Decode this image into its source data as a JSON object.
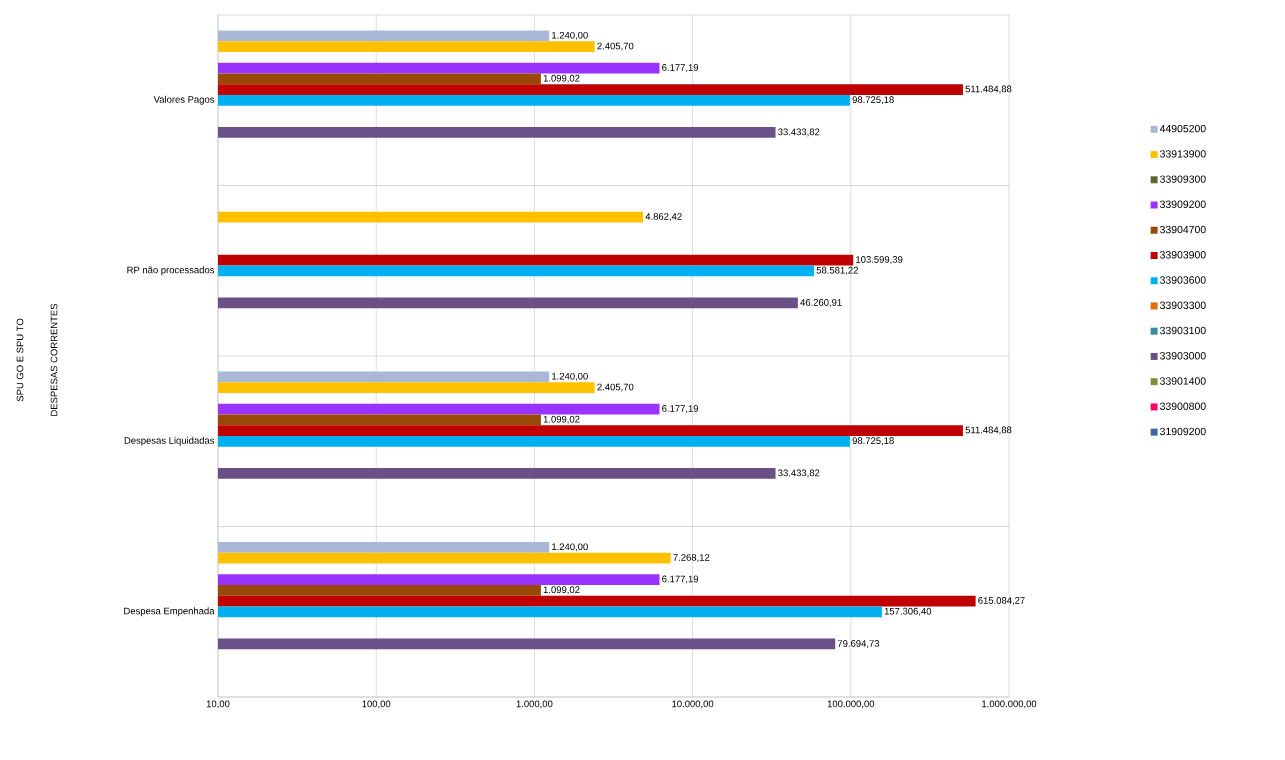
{
  "chart_data": {
    "type": "bar",
    "orientation": "horizontal",
    "log": "x",
    "annotations": [
      "SPU GO  E SPU TO",
      "DESPESAS CORRENTES"
    ],
    "categories": [
      "Valores Pagos",
      "RP não processados",
      "Despesas Liquidadas",
      "Despesa Empenhada"
    ],
    "xlim": [
      10,
      1000000
    ],
    "xticks": [
      {
        "value": 10,
        "label": "10,00"
      },
      {
        "value": 100,
        "label": "100,00"
      },
      {
        "value": 1000,
        "label": "1.000,00"
      },
      {
        "value": 10000,
        "label": "10.000,00"
      },
      {
        "value": 100000,
        "label": "100.000,00"
      },
      {
        "value": 1000000,
        "label": "1.000.000,00"
      }
    ],
    "grid": true,
    "legend": "right",
    "series": [
      {
        "name": "44905200",
        "color": "#a9b8d9",
        "values": [
          1240.0,
          null,
          1240.0,
          1240.0
        ],
        "value_labels": [
          "1.240,00",
          null,
          "1.240,00",
          "1.240,00"
        ]
      },
      {
        "name": "33913900",
        "color": "#ffc000",
        "values": [
          2405.7,
          4862.42,
          2405.7,
          7268.12
        ],
        "value_labels": [
          "2.405,70",
          "4.862,42",
          "2.405,70",
          "7.268,12"
        ]
      },
      {
        "name": "33909300",
        "color": "#5f6530",
        "values": [
          null,
          null,
          null,
          null
        ]
      },
      {
        "name": "33909200",
        "color": "#9933ff",
        "values": [
          6177.19,
          null,
          6177.19,
          6177.19
        ],
        "value_labels": [
          "6.177,19",
          null,
          "6.177,19",
          "6.177,19"
        ]
      },
      {
        "name": "33904700",
        "color": "#984807",
        "values": [
          1099.02,
          null,
          1099.02,
          1099.02
        ],
        "value_labels": [
          "1.099,02",
          null,
          "1.099,02",
          "1.099,02"
        ]
      },
      {
        "name": "33903900",
        "color": "#c00000",
        "values": [
          511484.88,
          103599.39,
          511484.88,
          615084.27
        ],
        "value_labels": [
          "511.484,88",
          "103.599,39",
          "511.484,88",
          "615.084,27"
        ]
      },
      {
        "name": "33903600",
        "color": "#00b0f0",
        "values": [
          98725.18,
          58581.22,
          98725.18,
          157306.4
        ],
        "value_labels": [
          "98.725,18",
          "58.581,22",
          "98.725,18",
          "157.306,40"
        ]
      },
      {
        "name": "33903300",
        "color": "#e46c0a",
        "values": [
          null,
          null,
          null,
          null
        ]
      },
      {
        "name": "33903100",
        "color": "#3a8aa0",
        "values": [
          null,
          null,
          null,
          null
        ]
      },
      {
        "name": "33903000",
        "color": "#6a5086",
        "values": [
          33433.82,
          46260.91,
          33433.82,
          79694.73
        ],
        "value_labels": [
          "33.433,82",
          "46.260,91",
          "33.433,82",
          "79.694,73"
        ]
      },
      {
        "name": "33901400",
        "color": "#77933c",
        "values": [
          null,
          null,
          null,
          null
        ]
      },
      {
        "name": "33900800",
        "color": "#ff0066",
        "values": [
          null,
          null,
          null,
          null
        ]
      },
      {
        "name": "31909200",
        "color": "#3f6797",
        "values": [
          null,
          null,
          null,
          null
        ]
      }
    ]
  }
}
